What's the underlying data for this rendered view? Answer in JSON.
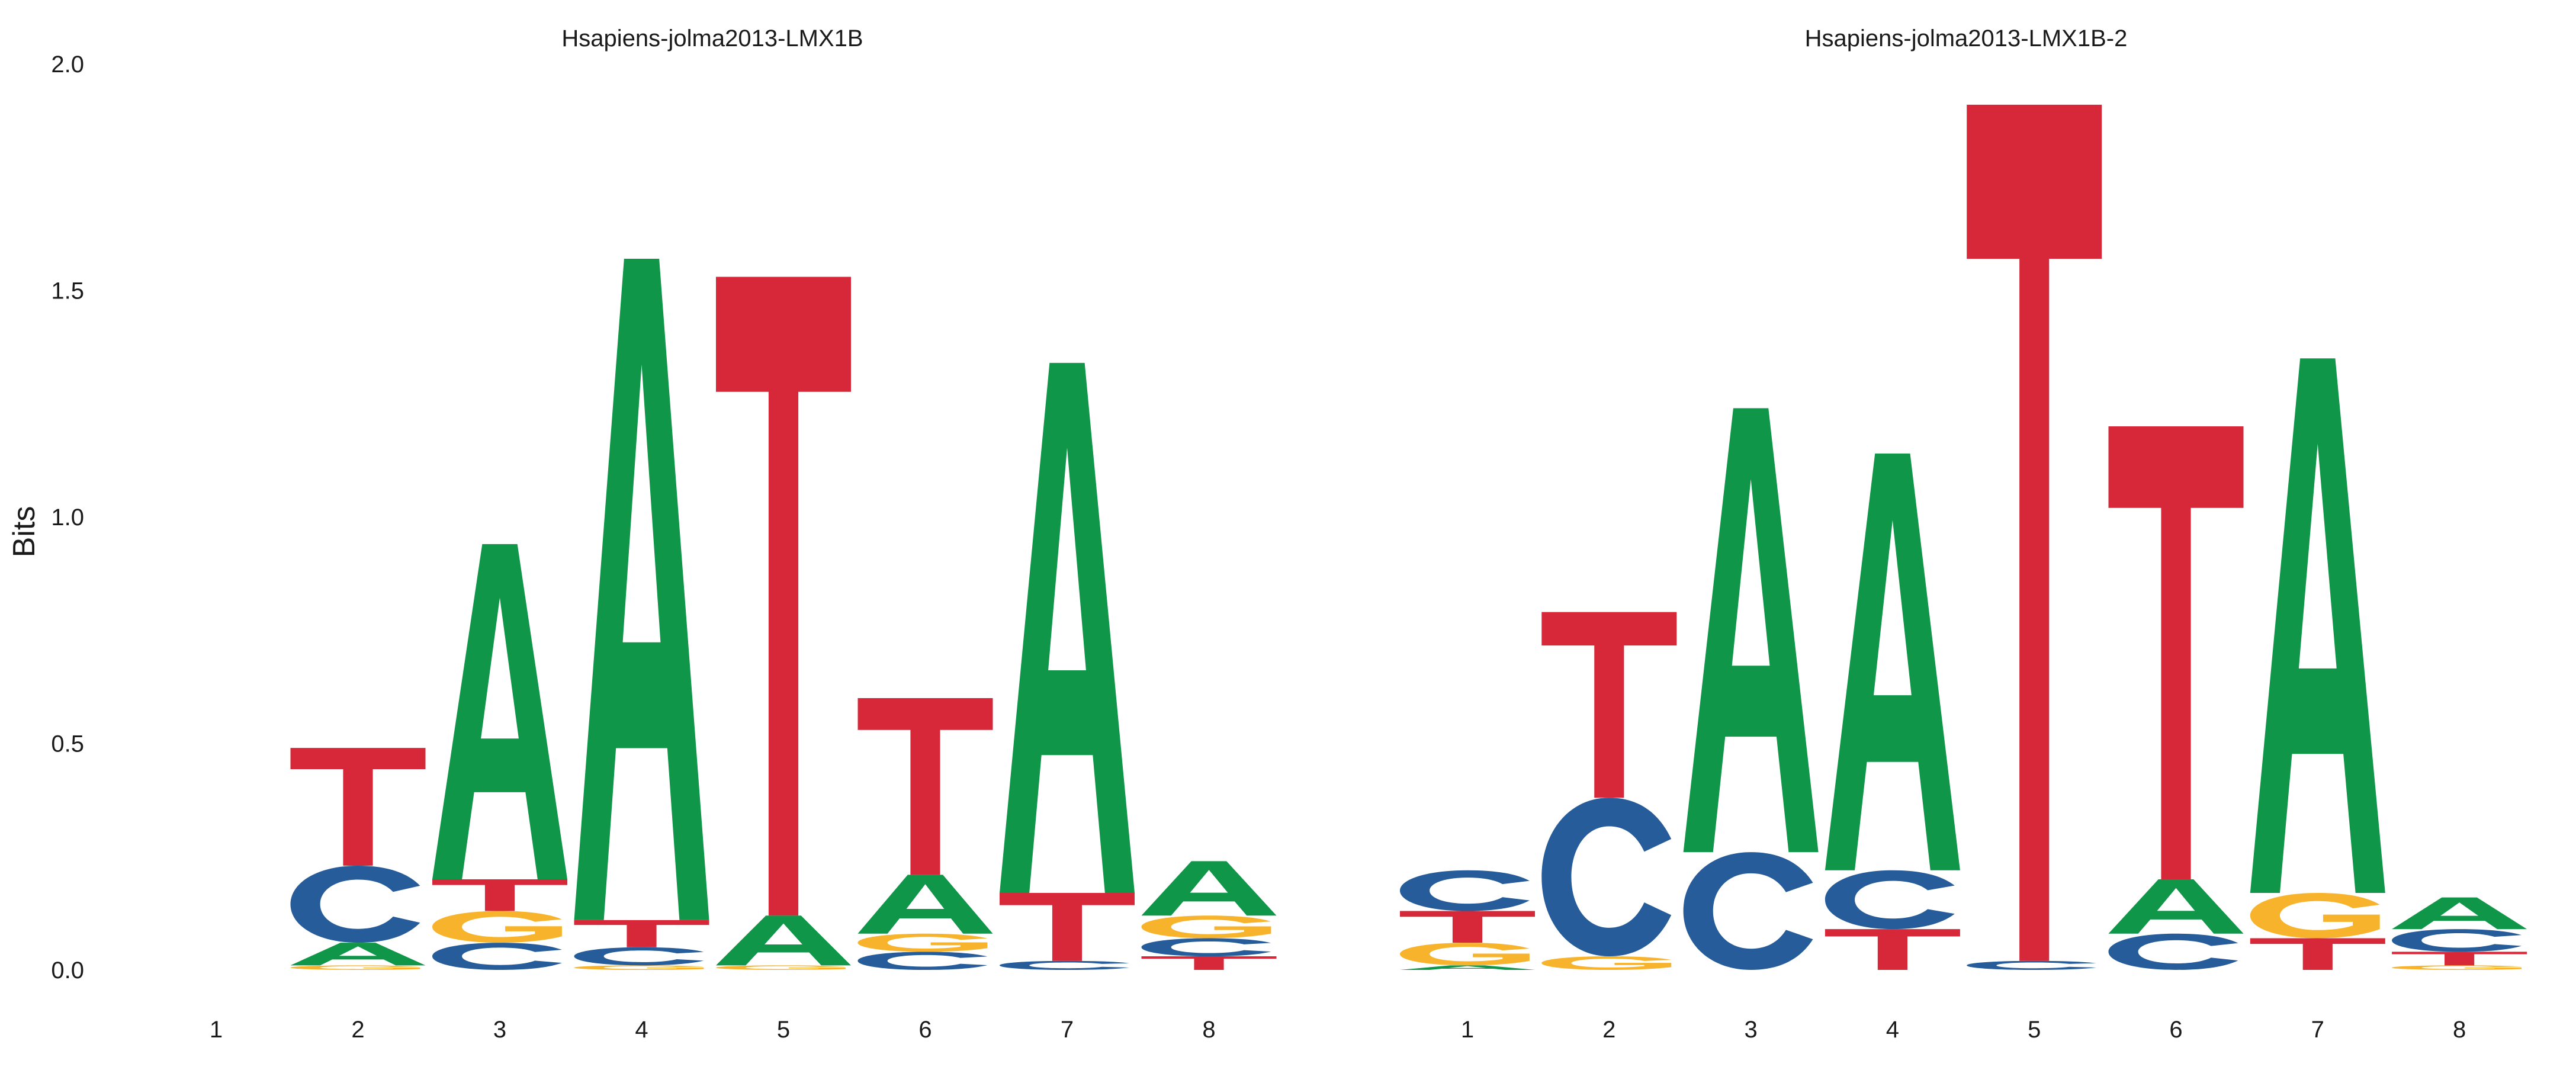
{
  "chart_data": {
    "type": "sequence-logo",
    "ylabel": "Bits",
    "ylim": [
      0,
      2
    ],
    "yticks": [
      "0.0",
      "0.5",
      "1.0",
      "1.5",
      "2.0"
    ],
    "yticks_values": [
      0,
      0.5,
      1,
      1.5,
      2
    ],
    "colors": {
      "A": "#109648",
      "C": "#255c99",
      "G": "#f7b32b",
      "T": "#d62839"
    },
    "panels": [
      {
        "title": "Hsapiens-jolma2013-LMX1B",
        "positions": [
          "1",
          "2",
          "3",
          "4",
          "5",
          "6",
          "7",
          "8"
        ],
        "stacks": [
          [],
          [
            {
              "letter": "G",
              "bits": 0.01
            },
            {
              "letter": "A",
              "bits": 0.05
            },
            {
              "letter": "C",
              "bits": 0.17
            },
            {
              "letter": "T",
              "bits": 0.26
            }
          ],
          [
            {
              "letter": "C",
              "bits": 0.06
            },
            {
              "letter": "G",
              "bits": 0.07
            },
            {
              "letter": "T",
              "bits": 0.07
            },
            {
              "letter": "A",
              "bits": 0.74
            }
          ],
          [
            {
              "letter": "G",
              "bits": 0.01
            },
            {
              "letter": "C",
              "bits": 0.04
            },
            {
              "letter": "T",
              "bits": 0.06
            },
            {
              "letter": "A",
              "bits": 1.46
            }
          ],
          [
            {
              "letter": "G",
              "bits": 0.01
            },
            {
              "letter": "A",
              "bits": 0.11
            },
            {
              "letter": "T",
              "bits": 1.41
            }
          ],
          [
            {
              "letter": "C",
              "bits": 0.04
            },
            {
              "letter": "G",
              "bits": 0.04
            },
            {
              "letter": "A",
              "bits": 0.13
            },
            {
              "letter": "T",
              "bits": 0.39
            }
          ],
          [
            {
              "letter": "C",
              "bits": 0.02
            },
            {
              "letter": "T",
              "bits": 0.15
            },
            {
              "letter": "A",
              "bits": 1.17
            }
          ],
          [
            {
              "letter": "T",
              "bits": 0.03
            },
            {
              "letter": "C",
              "bits": 0.04
            },
            {
              "letter": "G",
              "bits": 0.05
            },
            {
              "letter": "A",
              "bits": 0.12
            }
          ]
        ]
      },
      {
        "title": "Hsapiens-jolma2013-LMX1B-2",
        "positions": [
          "1",
          "2",
          "3",
          "4",
          "5",
          "6",
          "7",
          "8"
        ],
        "stacks": [
          [
            {
              "letter": "A",
              "bits": 0.01
            },
            {
              "letter": "G",
              "bits": 0.05
            },
            {
              "letter": "T",
              "bits": 0.07
            },
            {
              "letter": "C",
              "bits": 0.09
            }
          ],
          [
            {
              "letter": "G",
              "bits": 0.03
            },
            {
              "letter": "C",
              "bits": 0.35
            },
            {
              "letter": "T",
              "bits": 0.41
            }
          ],
          [
            {
              "letter": "C",
              "bits": 0.26
            },
            {
              "letter": "A",
              "bits": 0.98
            }
          ],
          [
            {
              "letter": "T",
              "bits": 0.09
            },
            {
              "letter": "C",
              "bits": 0.13
            },
            {
              "letter": "A",
              "bits": 0.92
            }
          ],
          [
            {
              "letter": "C",
              "bits": 0.02
            },
            {
              "letter": "T",
              "bits": 1.89
            }
          ],
          [
            {
              "letter": "C",
              "bits": 0.08
            },
            {
              "letter": "A",
              "bits": 0.12
            },
            {
              "letter": "T",
              "bits": 1.0
            }
          ],
          [
            {
              "letter": "T",
              "bits": 0.07
            },
            {
              "letter": "G",
              "bits": 0.1
            },
            {
              "letter": "A",
              "bits": 1.18
            }
          ],
          [
            {
              "letter": "G",
              "bits": 0.01
            },
            {
              "letter": "T",
              "bits": 0.03
            },
            {
              "letter": "C",
              "bits": 0.05
            },
            {
              "letter": "A",
              "bits": 0.07
            }
          ]
        ]
      }
    ]
  }
}
